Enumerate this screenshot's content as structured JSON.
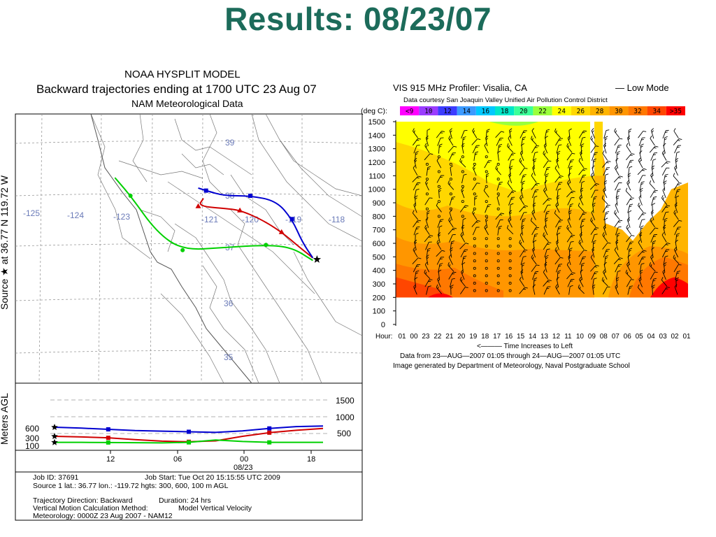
{
  "slide": {
    "title": "Results: 08/23/07"
  },
  "chart_data": [
    {
      "type": "map-trajectory",
      "title_lines": [
        "NOAA HYSPLIT MODEL",
        "Backward trajectories ending at 1700 UTC 23 Aug 07",
        "NAM Meteorological Data"
      ],
      "ylabel": "Source ★ at   36.77 N  119.72 W",
      "lon_labels": [
        "-125",
        "-124",
        "-123",
        "-121",
        "-120",
        "-119",
        "-118"
      ],
      "lat_labels": [
        "39",
        "38",
        "37",
        "36",
        "35"
      ],
      "source": {
        "lat": 36.77,
        "lon": -119.72
      },
      "series": [
        {
          "color": "#d00000",
          "marker": "triangle",
          "points": [
            [
              -121.9,
              37.95
            ],
            [
              -122.0,
              37.8
            ],
            [
              -121.45,
              37.75
            ],
            [
              -121.2,
              37.72
            ],
            [
              -120.8,
              37.55
            ],
            [
              -120.4,
              37.3
            ],
            [
              -120.05,
              37.0
            ],
            [
              -119.8,
              36.8
            ]
          ]
        },
        {
          "color": "#0000d0",
          "marker": "square",
          "points": [
            [
              -122.0,
              38.15
            ],
            [
              -121.85,
              38.1
            ],
            [
              -121.5,
              38.0
            ],
            [
              -121.0,
              38.0
            ],
            [
              -120.5,
              37.9
            ],
            [
              -120.2,
              37.55
            ],
            [
              -120.0,
              37.1
            ],
            [
              -119.8,
              36.8
            ]
          ]
        },
        {
          "color": "#00d000",
          "marker": "circle",
          "points": [
            [
              -123.6,
              38.35
            ],
            [
              -123.3,
              38.0
            ],
            [
              -122.8,
              37.3
            ],
            [
              -122.3,
              36.95
            ],
            [
              -121.5,
              37.0
            ],
            [
              -120.7,
              37.05
            ],
            [
              -120.2,
              37.0
            ],
            [
              -119.8,
              36.75
            ]
          ]
        }
      ],
      "height_panel": {
        "ylabel": "Meters AGL",
        "right_ticks": [
          "1500",
          "1000",
          "500"
        ],
        "left_labels": [
          "600",
          "300",
          "100"
        ],
        "time_labels": [
          "12",
          "06",
          "00",
          "18"
        ],
        "date_label": "08/23",
        "series": [
          {
            "color": "#0000d0",
            "values": [
              600,
              570,
              530,
              490,
              470,
              450,
              430,
              480,
              560,
              620,
              640
            ]
          },
          {
            "color": "#d00000",
            "values": [
              300,
              280,
              250,
              190,
              140,
              120,
              150,
              300,
              420,
              500,
              560
            ]
          },
          {
            "color": "#00d000",
            "values": [
              100,
              100,
              95,
              90,
              85,
              100,
              180,
              130,
              100,
              100,
              100
            ]
          }
        ]
      },
      "info": {
        "job_id": "Job ID: 37691",
        "job_start": "Job Start: Tue Oct 20 15:15:55 UTC 2009",
        "source": "Source 1 lat.: 36.77  lon.: -119.72  hgts: 300, 600, 100 m AGL",
        "direction": "Trajectory Direction: Backward",
        "duration": "Duration: 24 hrs",
        "vm_label": "Vertical Motion Calculation Method:",
        "vm_value": "Model Vertical Velocity",
        "met": "Meteorology: 0000Z 23 Aug 2007 - NAM12"
      }
    },
    {
      "type": "heatmap",
      "header_title": "VIS  915  MHz  Profiler:    Visalia,  CA",
      "header_mode": "—  Low  Mode",
      "courtesy": "Data  courtesy  San  Joaquin  Valley  Unified  Air  Pollution  Control  District",
      "legend_label": "(deg  C):",
      "legend_entries": [
        {
          "label": "<9",
          "color": "#ff00ff"
        },
        {
          "label": "10",
          "color": "#9a3cff"
        },
        {
          "label": "12",
          "color": "#3c3cff"
        },
        {
          "label": "14",
          "color": "#3c9aff"
        },
        {
          "label": "16",
          "color": "#00c8ff"
        },
        {
          "label": "18",
          "color": "#00e6c8"
        },
        {
          "label": "20",
          "color": "#3cff9a"
        },
        {
          "label": "22",
          "color": "#9aff3c"
        },
        {
          "label": "24",
          "color": "#ffff00"
        },
        {
          "label": "26",
          "color": "#ffd700"
        },
        {
          "label": "28",
          "color": "#ffb400"
        },
        {
          "label": "30",
          "color": "#ff9600"
        },
        {
          "label": "32",
          "color": "#ff7800"
        },
        {
          "label": "34",
          "color": "#ff4600"
        },
        {
          "label": ">35",
          "color": "#ff0000"
        }
      ],
      "y_ticks": [
        "1500",
        "1400",
        "1300",
        "1200",
        "1100",
        "1000",
        "900",
        "800",
        "700",
        "600",
        "500",
        "400",
        "300",
        "200",
        "100",
        "0"
      ],
      "hour_label": "Hour:",
      "hours": [
        "01",
        "00",
        "23",
        "22",
        "21",
        "20",
        "19",
        "18",
        "17",
        "16",
        "15",
        "14",
        "13",
        "12",
        "11",
        "10",
        "09",
        "08",
        "07",
        "06",
        "05",
        "04",
        "03",
        "02",
        "01"
      ],
      "footer": [
        "<———  Time  Increases  to  Left",
        "Data  from  23—AUG—2007  01:05  through  24—AUG—2007  01:05  UTC",
        "Image  generated  by  Department  of  Meteorology,  Naval  Postgraduate  School"
      ]
    }
  ]
}
